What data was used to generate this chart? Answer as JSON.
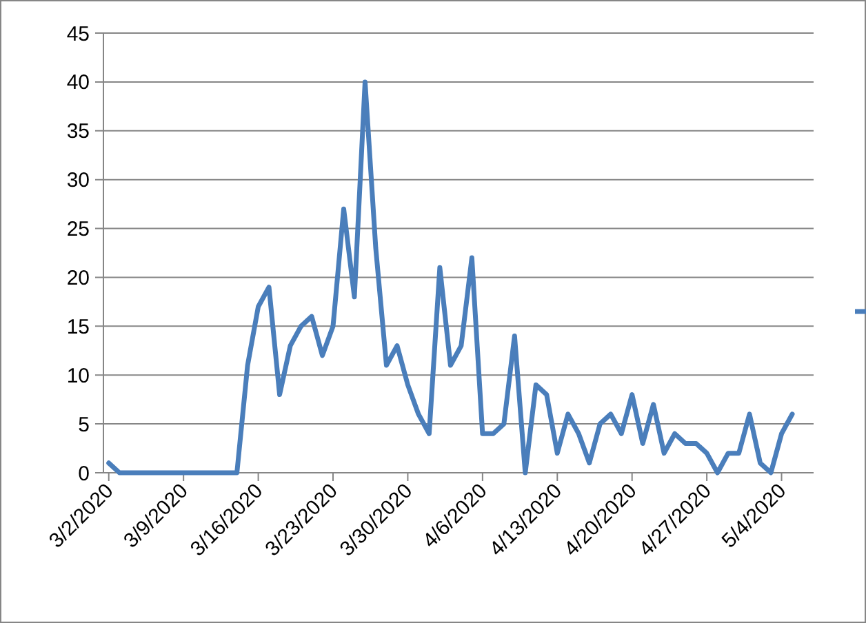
{
  "chart_data": {
    "type": "line",
    "x": [
      "2020-03-02",
      "2020-03-03",
      "2020-03-04",
      "2020-03-05",
      "2020-03-06",
      "2020-03-07",
      "2020-03-08",
      "2020-03-09",
      "2020-03-10",
      "2020-03-11",
      "2020-03-12",
      "2020-03-13",
      "2020-03-14",
      "2020-03-15",
      "2020-03-16",
      "2020-03-17",
      "2020-03-18",
      "2020-03-19",
      "2020-03-20",
      "2020-03-21",
      "2020-03-22",
      "2020-03-23",
      "2020-03-24",
      "2020-03-25",
      "2020-03-26",
      "2020-03-27",
      "2020-03-28",
      "2020-03-29",
      "2020-03-30",
      "2020-03-31",
      "2020-04-01",
      "2020-04-02",
      "2020-04-03",
      "2020-04-04",
      "2020-04-05",
      "2020-04-06",
      "2020-04-07",
      "2020-04-08",
      "2020-04-09",
      "2020-04-10",
      "2020-04-11",
      "2020-04-12",
      "2020-04-13",
      "2020-04-14",
      "2020-04-15",
      "2020-04-16",
      "2020-04-17",
      "2020-04-18",
      "2020-04-19",
      "2020-04-20",
      "2020-04-21",
      "2020-04-22",
      "2020-04-23",
      "2020-04-24",
      "2020-04-25",
      "2020-04-26",
      "2020-04-27",
      "2020-04-28",
      "2020-04-29",
      "2020-04-30",
      "2020-05-01",
      "2020-05-02",
      "2020-05-03",
      "2020-05-04",
      "2020-05-05"
    ],
    "series": [
      {
        "color": "#4a7ebb",
        "values": [
          1,
          0,
          0,
          0,
          0,
          0,
          0,
          0,
          0,
          0,
          0,
          0,
          0,
          11,
          17,
          19,
          8,
          13,
          15,
          16,
          12,
          15,
          27,
          18,
          40,
          23,
          11,
          13,
          9,
          6,
          4,
          21,
          11,
          13,
          22,
          4,
          4,
          5,
          14,
          0,
          9,
          8,
          2,
          6,
          4,
          1,
          5,
          6,
          4,
          8,
          3,
          7,
          2,
          4,
          3,
          3,
          2,
          0,
          2,
          2,
          6,
          1,
          0,
          4,
          6
        ]
      }
    ],
    "xlim": [
      "2020-03-01T12:00",
      "2020-05-07T00:00"
    ],
    "xticks": [
      {
        "value": "2020-03-02",
        "label": "3/2/2020"
      },
      {
        "value": "2020-03-09",
        "label": "3/9/2020"
      },
      {
        "value": "2020-03-16",
        "label": "3/16/2020"
      },
      {
        "value": "2020-03-23",
        "label": "3/23/2020"
      },
      {
        "value": "2020-03-30",
        "label": "3/30/2020"
      },
      {
        "value": "2020-04-06",
        "label": "4/6/2020"
      },
      {
        "value": "2020-04-13",
        "label": "4/13/2020"
      },
      {
        "value": "2020-04-20",
        "label": "4/20/2020"
      },
      {
        "value": "2020-04-27",
        "label": "4/27/2020"
      },
      {
        "value": "2020-05-04",
        "label": "5/4/2020"
      }
    ],
    "ylim": [
      0,
      45
    ],
    "yticks": [
      0,
      5,
      10,
      15,
      20,
      25,
      30,
      35,
      40,
      45
    ],
    "grid": "y",
    "marker": "none",
    "line_style": "solid"
  }
}
